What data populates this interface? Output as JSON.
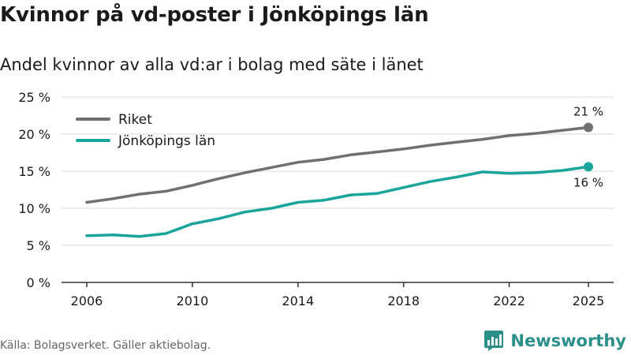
{
  "title": "Kvinnor på vd-poster i Jönköpings län",
  "subtitle": "Andel kvinnor av alla vd:ar i bolag med säte i länet",
  "source": "Källa: Bolagsverket. Gäller aktiebolag.",
  "brand": {
    "name": "Newsworthy",
    "icon": "newsworthy-logo-icon"
  },
  "colors": {
    "riket": "#707070",
    "jonkoping": "#1aa59a",
    "grid": "#d9d9d9",
    "axis": "#333333"
  },
  "chart_data": {
    "type": "line",
    "title": "Kvinnor på vd-poster i Jönköpings län",
    "xlabel": "",
    "ylabel": "",
    "xlim": [
      2006,
      2025
    ],
    "ylim": [
      0,
      25
    ],
    "x_ticks": [
      2006,
      2010,
      2014,
      2018,
      2022,
      2025
    ],
    "x_tick_labels": [
      "2006",
      "2010",
      "2014",
      "2018",
      "2022",
      "2025"
    ],
    "y_ticks": [
      0,
      5,
      10,
      15,
      20,
      25
    ],
    "y_tick_labels": [
      "0 %",
      "5 %",
      "10 %",
      "15 %",
      "20 %",
      "25 %"
    ],
    "grid": true,
    "legend_position": "top-left",
    "x": [
      2006,
      2007,
      2008,
      2009,
      2010,
      2011,
      2012,
      2013,
      2014,
      2015,
      2016,
      2017,
      2018,
      2019,
      2020,
      2021,
      2022,
      2023,
      2024,
      2025
    ],
    "series": [
      {
        "name": "Riket",
        "color": "#707070",
        "values": [
          10.8,
          11.3,
          11.9,
          12.3,
          13.1,
          14.0,
          14.8,
          15.5,
          16.2,
          16.6,
          17.2,
          17.6,
          18.0,
          18.5,
          18.9,
          19.3,
          19.8,
          20.1,
          20.5,
          20.9
        ],
        "end_label": "21 %",
        "end_label_position": "above"
      },
      {
        "name": "Jönköpings län",
        "color": "#1aa59a",
        "values": [
          6.3,
          6.4,
          6.2,
          6.6,
          7.9,
          8.6,
          9.5,
          10.0,
          10.8,
          11.1,
          11.8,
          12.0,
          12.8,
          13.6,
          14.2,
          14.9,
          14.7,
          14.8,
          15.1,
          15.6
        ],
        "end_label": "16 %",
        "end_label_position": "below"
      }
    ]
  }
}
